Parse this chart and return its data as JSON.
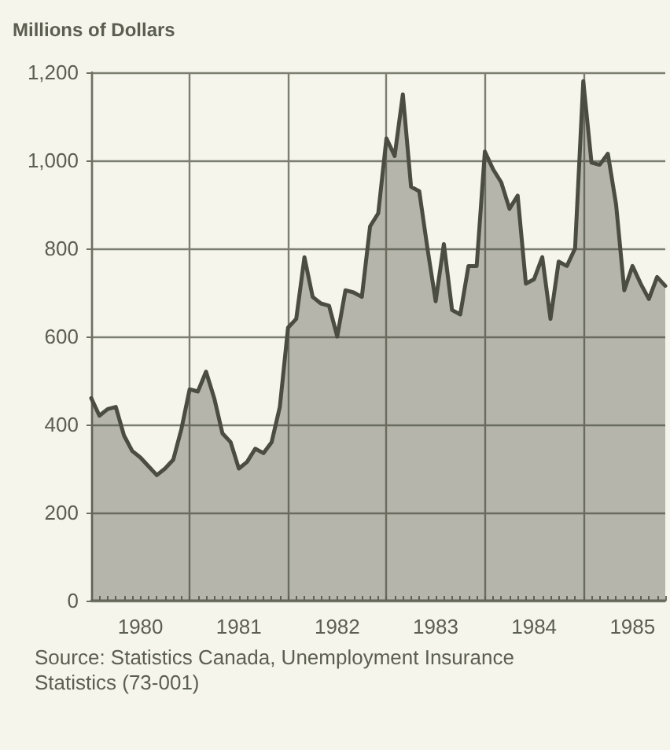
{
  "chart_data": {
    "type": "area",
    "ylabel": "Millions of Dollars",
    "annotations": [
      "Source: Statistics Canada, Unemployment Insurance Statistics (73-001)"
    ],
    "categories": [
      null,
      null,
      null,
      null,
      null,
      null,
      "1980",
      null,
      null,
      null,
      null,
      null,
      null,
      null,
      null,
      null,
      null,
      null,
      "1981",
      null,
      null,
      null,
      null,
      null,
      null,
      null,
      null,
      null,
      null,
      null,
      "1982",
      null,
      null,
      null,
      null,
      null,
      null,
      null,
      null,
      null,
      null,
      null,
      "1983",
      null,
      null,
      null,
      null,
      null,
      null,
      null,
      null,
      null,
      null,
      null,
      "1984",
      null,
      null,
      null,
      null,
      null,
      null,
      null,
      null,
      null,
      null,
      null,
      "1985",
      null,
      null,
      null,
      null
    ],
    "series": [
      {
        "color": "#4b4c42",
        "values": [
          460,
          420,
          435,
          440,
          375,
          340,
          325,
          305,
          285,
          300,
          320,
          390,
          480,
          475,
          520,
          460,
          380,
          360,
          300,
          315,
          345,
          335,
          360,
          440,
          620,
          640,
          780,
          690,
          675,
          670,
          600,
          705,
          700,
          690,
          850,
          880,
          1050,
          1010,
          1150,
          940,
          930,
          800,
          680,
          810,
          660,
          650,
          760,
          760,
          1020,
          980,
          950,
          890,
          920,
          720,
          730,
          780,
          640,
          770,
          760,
          800,
          1180,
          995,
          990,
          1015,
          900,
          705,
          760,
          720,
          685,
          735,
          715
        ]
      }
    ],
    "ylim": [
      0,
      1200
    ],
    "yticks": [
      0,
      {
        "value": 200,
        "label": "200"
      },
      {
        "value": 400,
        "label": "400"
      },
      {
        "value": 600,
        "label": "600"
      },
      {
        "value": 800,
        "label": "800"
      },
      {
        "value": 1000,
        "label": "1,000"
      },
      {
        "value": 1200,
        "label": "1,200"
      }
    ],
    "grid": true,
    "marker": "none",
    "line_style": "solid"
  }
}
